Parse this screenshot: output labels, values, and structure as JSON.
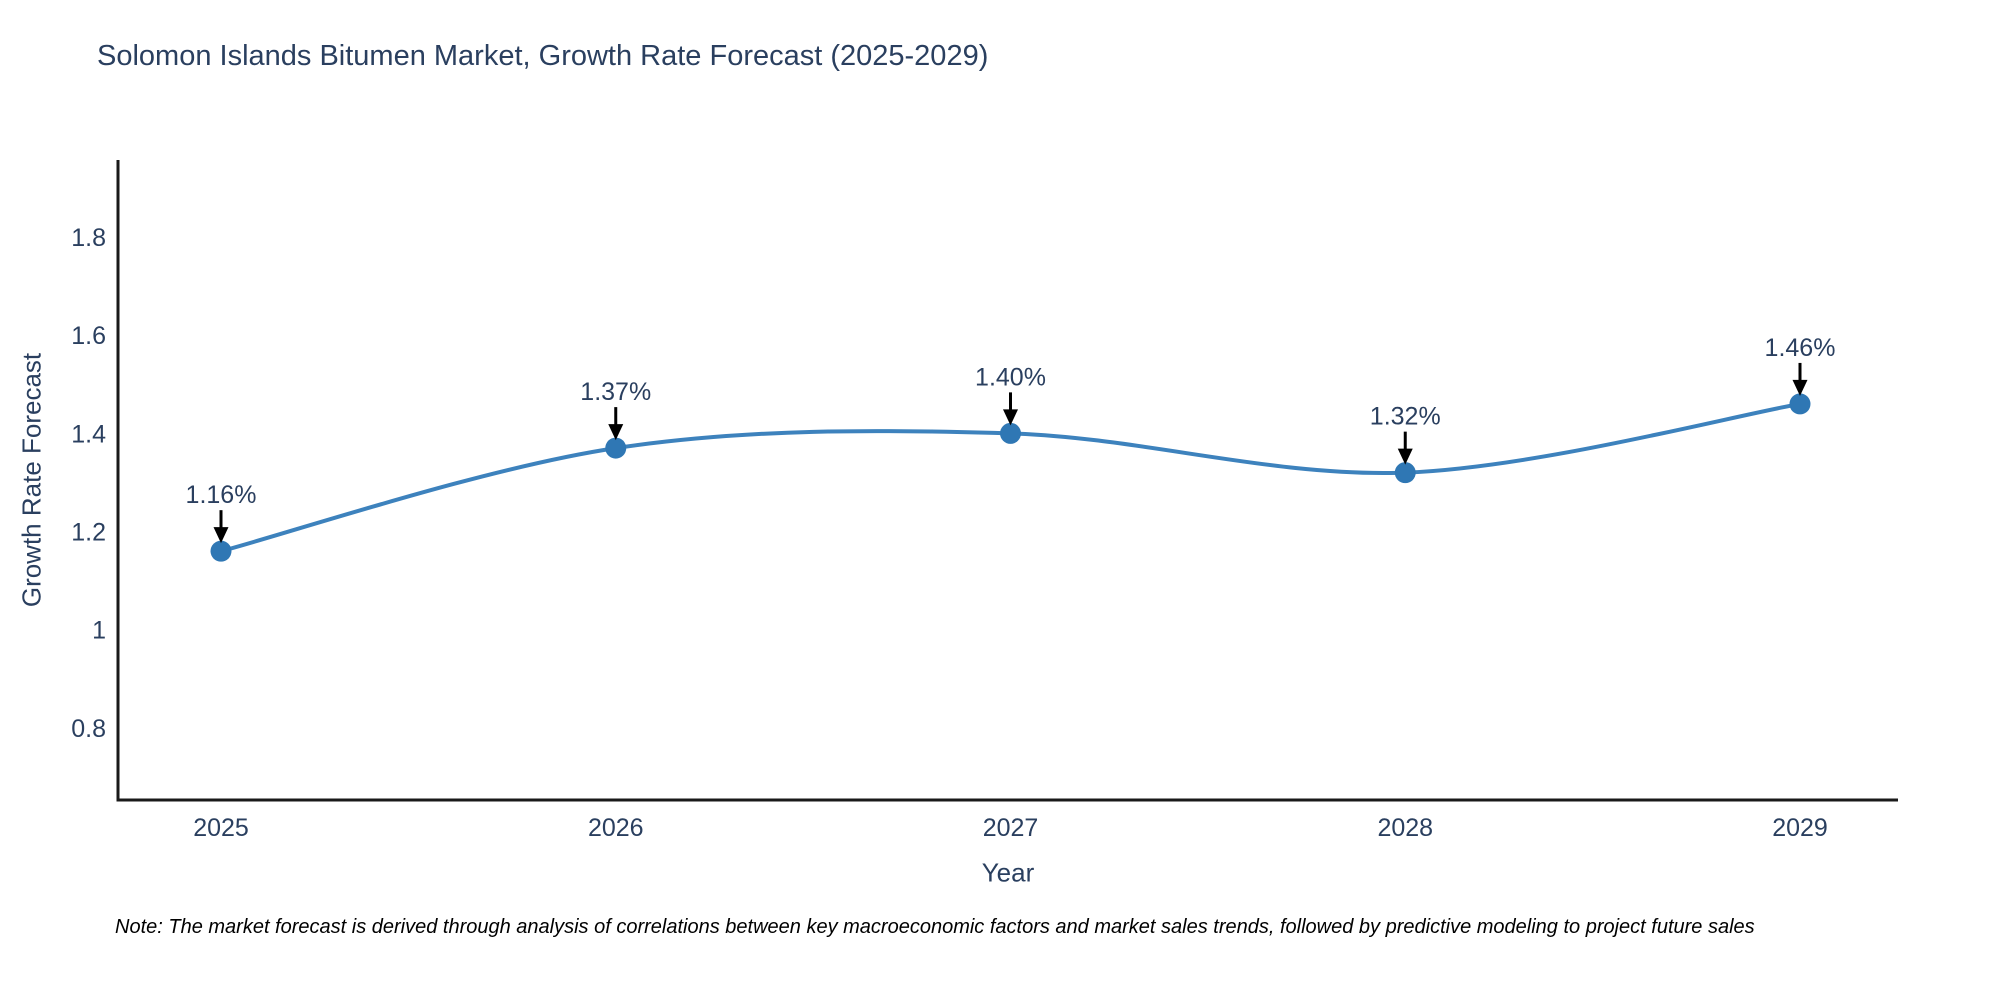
{
  "page": {
    "note": "Note: The market forecast is derived through analysis of correlations between key macroeconomic factors and market sales trends, followed by predictive modeling to project future sales"
  },
  "chart_data": {
    "type": "line",
    "title": "Solomon Islands Bitumen Market, Growth Rate Forecast (2025-2029)",
    "xlabel": "Year",
    "ylabel": "Growth Rate Forecast",
    "x": [
      2025,
      2026,
      2027,
      2028,
      2029
    ],
    "values": [
      1.16,
      1.37,
      1.4,
      1.32,
      1.46
    ],
    "point_labels": [
      "1.16%",
      "1.37%",
      "1.40%",
      "1.32%",
      "1.46%"
    ],
    "yticks": [
      0.8,
      1,
      1.2,
      1.4,
      1.6,
      1.8
    ],
    "ylim": [
      0.653,
      1.957
    ],
    "line_shape": "spline",
    "grid": false,
    "legend": false,
    "colors": {
      "line": "#3d82bd",
      "marker": "#2f77b4",
      "axis": "#1a1a1a",
      "text": "#2a3f5f",
      "annotation_arrow": "#000000"
    }
  }
}
